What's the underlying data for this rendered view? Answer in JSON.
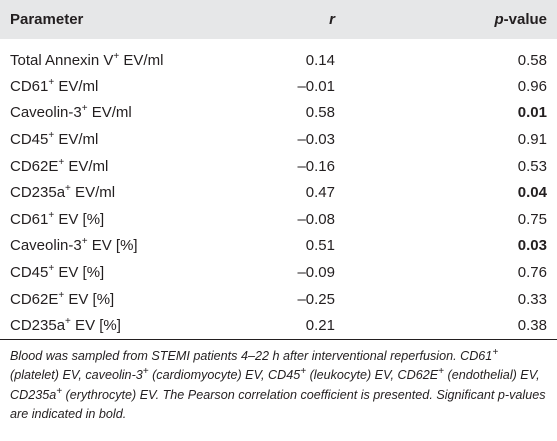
{
  "header": {
    "parameter": "Parameter",
    "r": "r",
    "pvalue_italic": "p",
    "pvalue_rest": "-value"
  },
  "rows": [
    {
      "name": "Total Annexin V",
      "sup": "+",
      "suffix": " EV/ml",
      "r": "0.14",
      "p": "0.58",
      "bold": false
    },
    {
      "name": "CD61",
      "sup": "+",
      "suffix": " EV/ml",
      "r": "–0.01",
      "p": "0.96",
      "bold": false
    },
    {
      "name": "Caveolin-3",
      "sup": "+",
      "suffix": " EV/ml",
      "r": "0.58",
      "p": "0.01",
      "bold": true
    },
    {
      "name": "CD45",
      "sup": "+",
      "suffix": " EV/ml",
      "r": "–0.03",
      "p": "0.91",
      "bold": false
    },
    {
      "name": "CD62E",
      "sup": "+",
      "suffix": " EV/ml",
      "r": "–0.16",
      "p": "0.53",
      "bold": false
    },
    {
      "name": "CD235a",
      "sup": "+",
      "suffix": " EV/ml",
      "r": "0.47",
      "p": "0.04",
      "bold": true
    },
    {
      "name": "CD61",
      "sup": "+",
      "suffix": " EV [%]",
      "r": "–0.08",
      "p": "0.75",
      "bold": false
    },
    {
      "name": "Caveolin-3",
      "sup": "+",
      "suffix": " EV [%]",
      "r": "0.51",
      "p": "0.03",
      "bold": true
    },
    {
      "name": "CD45",
      "sup": "+",
      "suffix": " EV [%]",
      "r": "–0.09",
      "p": "0.76",
      "bold": false
    },
    {
      "name": "CD62E",
      "sup": "+",
      "suffix": " EV [%]",
      "r": "–0.25",
      "p": "0.33",
      "bold": false
    },
    {
      "name": "CD235a",
      "sup": "+",
      "suffix": " EV [%]",
      "r": "0.21",
      "p": "0.38",
      "bold": false
    }
  ],
  "footnote": {
    "t1": "Blood was sampled from STEMI patients 4–22 h after interventional reperfusion. CD61",
    "s1": "+",
    "t2": " (platelet) EV, caveolin-3",
    "s2": "+",
    "t3": " (cardiomyocyte) EV, CD45",
    "s3": "+",
    "t4": " (leukocyte) EV, CD62E",
    "s4": "+",
    "t5": " (endothelial) EV, CD235a",
    "s5": "+",
    "t6": " (erythrocyte) EV. The Pearson correlation coefficient is presented. Significant p-values are indicated in bold."
  }
}
